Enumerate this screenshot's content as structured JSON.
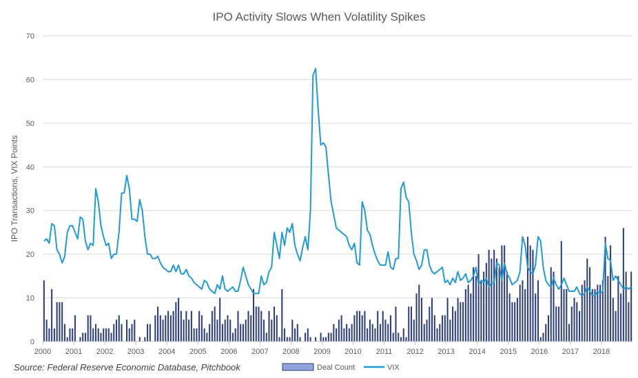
{
  "chart_data": {
    "type": "bar+line",
    "title": "IPO Activity Slows When Volatility Spikes",
    "ylabel": "IPO Transactions, VIX Points",
    "xlabel": "",
    "ylim": [
      0,
      70
    ],
    "yticks": [
      0,
      10,
      20,
      30,
      40,
      50,
      60,
      70
    ],
    "grid": "horizontal",
    "x_start_year": 2000,
    "x_end_year": 2018,
    "year_labels": [
      "2000",
      "2001",
      "2002",
      "2003",
      "2004",
      "2005",
      "2006",
      "2007",
      "2008",
      "2009",
      "2010",
      "2011",
      "2012",
      "2013",
      "2014",
      "2015",
      "2016",
      "2017",
      "2018"
    ],
    "legend_position": "bottom",
    "source": "Source: Federal Reserve Economic Database, Pitchbook",
    "series": [
      {
        "name": "Deal Count",
        "type": "bar",
        "color": "#2e3f7f",
        "frequency": "monthly",
        "values": [
          14,
          5,
          3,
          12,
          3,
          9,
          9,
          9,
          4,
          1,
          3,
          3,
          6,
          0,
          1,
          2,
          2,
          6,
          6,
          3,
          4,
          3,
          2,
          3,
          3,
          3,
          2,
          4,
          5,
          6,
          4,
          0,
          5,
          3,
          4,
          5,
          0,
          1,
          0,
          1,
          4,
          4,
          0,
          6,
          8,
          6,
          5,
          6,
          7,
          6,
          7,
          9,
          10,
          7,
          5,
          7,
          5,
          7,
          3,
          3,
          7,
          6,
          3,
          2,
          4,
          7,
          8,
          5,
          10,
          4,
          5,
          6,
          5,
          2,
          3,
          7,
          4,
          4,
          5,
          7,
          6,
          12,
          8,
          8,
          7,
          5,
          2,
          7,
          5,
          8,
          6,
          1,
          12,
          3,
          1,
          1,
          5,
          3,
          4,
          1,
          0,
          2,
          3,
          1,
          0,
          1,
          0,
          2,
          1,
          1,
          2,
          2,
          4,
          3,
          5,
          6,
          3,
          4,
          3,
          4,
          6,
          7,
          7,
          6,
          7,
          3,
          5,
          4,
          3,
          7,
          4,
          7,
          5,
          4,
          6,
          2,
          8,
          2,
          1,
          3,
          1,
          8,
          8,
          5,
          11,
          13,
          10,
          4,
          5,
          8,
          10,
          6,
          3,
          4,
          6,
          6,
          10,
          5,
          8,
          7,
          10,
          9,
          9,
          12,
          13,
          11,
          17,
          15,
          20,
          14,
          16,
          18,
          21,
          19,
          21,
          19,
          17,
          22,
          22,
          16,
          11,
          9,
          9,
          10,
          13,
          14,
          12,
          24,
          22,
          21,
          11,
          14,
          1,
          2,
          4,
          6,
          17,
          16,
          8,
          8,
          23,
          12,
          12,
          4,
          8,
          10,
          9,
          7,
          13,
          14,
          19,
          17,
          12,
          12,
          13,
          13,
          14,
          24,
          15,
          22,
          10,
          7,
          15,
          11,
          26,
          16,
          9,
          16
        ]
      },
      {
        "name": "VIX",
        "type": "line",
        "color": "#1f9ad6",
        "frequency": "monthly",
        "values": [
          23,
          23.5,
          22.5,
          27,
          26.5,
          21,
          20,
          18,
          19.5,
          25,
          26.5,
          26.5,
          25,
          23.5,
          28.5,
          28,
          23,
          21,
          22.5,
          22,
          35,
          32,
          26.5,
          24,
          22,
          22.5,
          19,
          20,
          20,
          25,
          34,
          34,
          38,
          35,
          28,
          28,
          27.5,
          32.5,
          30,
          24,
          20,
          20,
          19,
          19,
          19.5,
          18,
          17,
          16.5,
          16,
          16,
          17.5,
          16,
          17.5,
          15.5,
          15.5,
          16.5,
          15,
          14.5,
          13.5,
          13,
          12.5,
          12,
          14,
          13.5,
          12,
          11.5,
          11,
          13,
          12,
          15,
          12,
          11.5,
          12,
          12.5,
          11.5,
          11.5,
          14,
          17,
          15,
          13,
          12,
          11,
          11,
          11,
          15,
          13,
          13.5,
          16,
          17,
          25,
          22,
          19,
          25,
          22,
          26,
          25,
          27,
          22,
          20,
          18.5,
          21.5,
          24,
          21,
          30,
          61,
          62.5,
          53,
          45,
          45.5,
          44.5,
          38,
          32,
          29,
          26,
          25.5,
          25,
          24.5,
          24,
          22,
          21,
          22.5,
          18,
          17.5,
          32,
          30,
          25.5,
          24.5,
          22,
          20,
          18.5,
          17.5,
          17.5,
          17.5,
          20.5,
          17,
          16.5,
          19,
          19,
          35,
          36.5,
          33,
          32,
          25,
          20,
          18.5,
          16.5,
          17.5,
          21,
          21,
          17.5,
          16,
          15.5,
          16,
          16.5,
          17,
          13.5,
          14,
          13,
          14.5,
          13.5,
          16,
          14,
          14.5,
          15.5,
          13.5,
          14,
          15,
          17,
          13,
          14,
          13.5,
          14.5,
          12.5,
          13.5,
          13.5,
          18,
          17.5,
          14,
          18,
          15.5,
          14.5,
          13,
          13.5,
          14,
          16,
          24,
          22,
          17,
          16,
          15.5,
          17.5,
          24,
          23,
          17,
          14,
          13,
          12.5,
          14.5,
          13,
          12,
          13,
          14.5,
          13,
          11.5,
          11.5,
          11.5,
          12.5,
          11,
          10.5,
          11,
          12.5,
          11.5,
          10.5,
          10.5,
          11.5,
          11,
          11.5,
          22.5,
          19,
          18.5,
          14,
          15,
          14,
          13,
          12,
          12.5,
          12,
          12.5
        ]
      }
    ]
  }
}
